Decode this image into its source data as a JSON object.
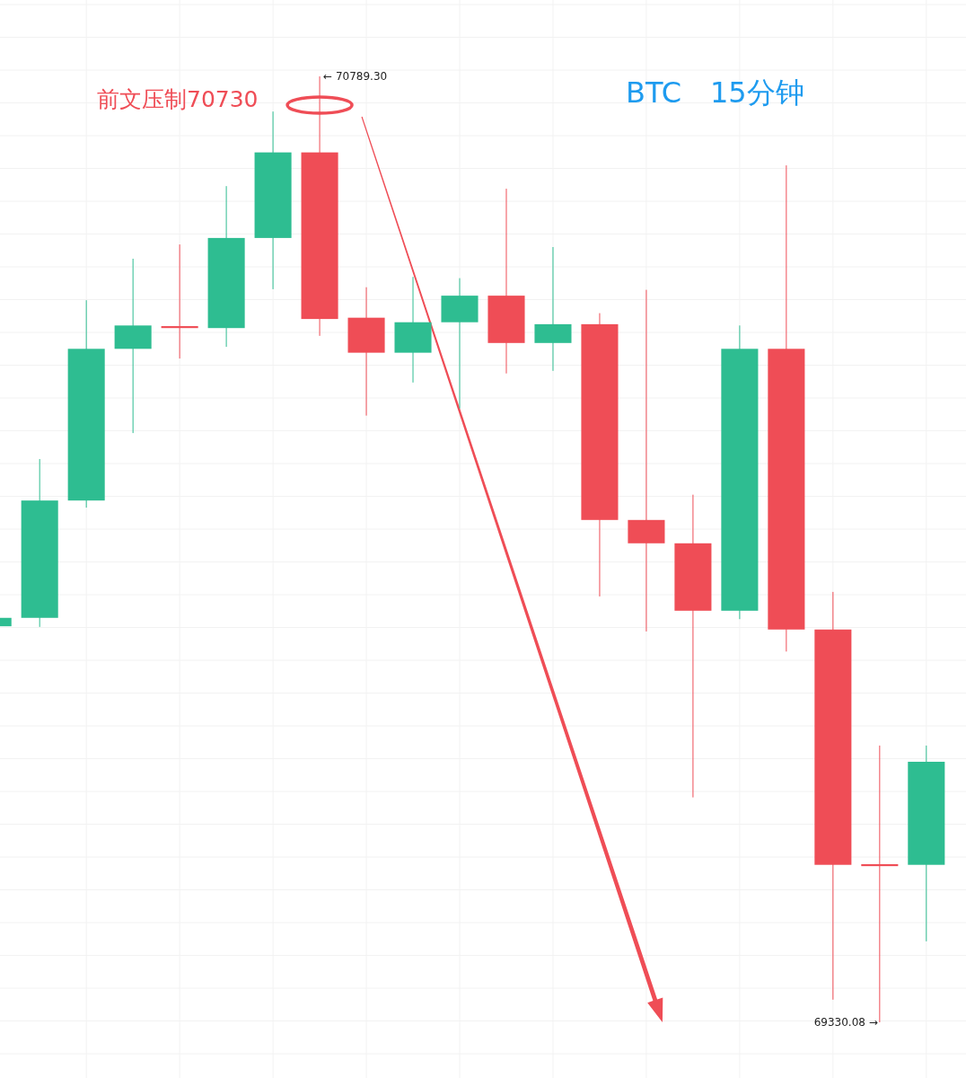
{
  "chart_data": {
    "type": "candlestick",
    "title": "BTC　15分钟",
    "categories": [
      null,
      null,
      null,
      null,
      null,
      null,
      null,
      null,
      null,
      null,
      null,
      null,
      null,
      null,
      null,
      null,
      null,
      null,
      null,
      null,
      null
    ],
    "ohlc": [
      [
        69941,
        69954,
        69941,
        69954
      ],
      [
        69954,
        70199,
        69940,
        70135
      ],
      [
        70135,
        70444,
        70124,
        70369
      ],
      [
        70369,
        70508,
        70239,
        70405
      ],
      [
        70404,
        70530,
        70354,
        70401
      ],
      [
        70401,
        70620,
        70372,
        70540
      ],
      [
        70540,
        70735,
        70461,
        70672
      ],
      [
        70672,
        70789.3,
        70389,
        70415
      ],
      [
        70417,
        70464,
        70266,
        70363
      ],
      [
        70363,
        70480,
        70317,
        70410
      ],
      [
        70410,
        70478,
        70277,
        70451
      ],
      [
        70451,
        70616,
        70331,
        70378
      ],
      [
        70378,
        70526,
        70335,
        70407
      ],
      [
        70407,
        70424,
        69987,
        70105
      ],
      [
        70105,
        70460,
        69933,
        70069
      ],
      [
        70069,
        70144,
        69677,
        69965
      ],
      [
        69965,
        70405,
        69952,
        70369
      ],
      [
        70369,
        70652,
        69902,
        69936
      ],
      [
        69936,
        69994,
        69365,
        69573
      ],
      [
        69574,
        69757,
        69330.08,
        69571
      ],
      [
        69573,
        69757,
        69455,
        69732
      ]
    ],
    "colors": [
      "#2ebd91",
      "#2ebd91",
      "#2ebd91",
      "#2ebd91",
      "#ef4d56",
      "#2ebd91",
      "#2ebd91",
      "#ef4d56",
      "#ef4d56",
      "#2ebd91",
      "#2ebd91",
      "#ef4d56",
      "#2ebd91",
      "#ef4d56",
      "#ef4d56",
      "#ef4d56",
      "#2ebd91",
      "#ef4d56",
      "#ef4d56",
      "#ef4d56",
      "#2ebd91"
    ],
    "grid": true,
    "annotations": [
      "← 70789.30",
      "69330.08 →",
      "前文压制70730"
    ]
  }
}
